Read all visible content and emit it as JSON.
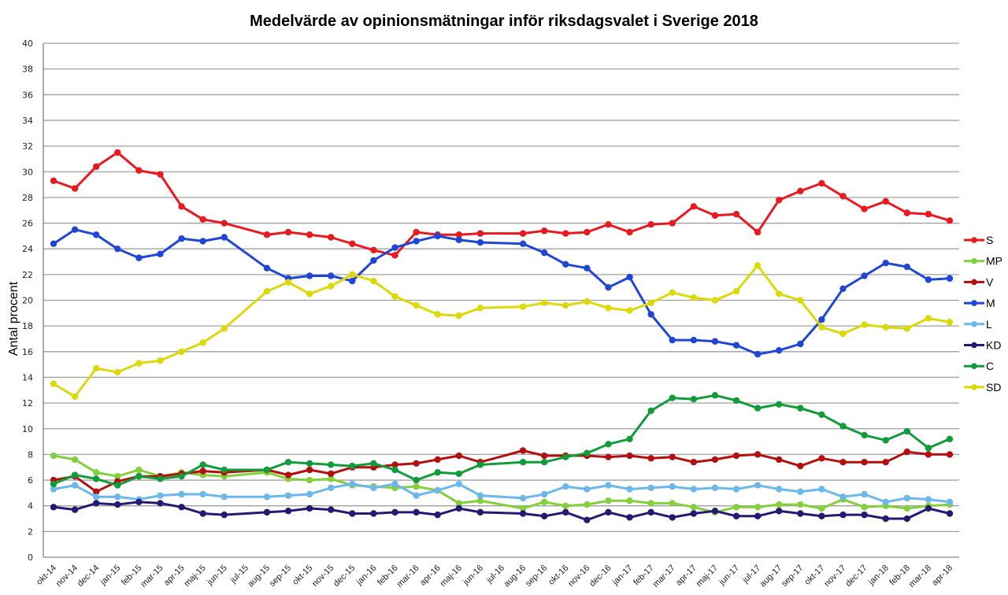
{
  "chart_data": {
    "type": "line",
    "title": "Medelvärde av opinionsmätningar inför riksdagsvalet i Sverige 2018",
    "xlabel": "",
    "ylabel": "Antal procent",
    "ylim": [
      0,
      40
    ],
    "yticks": [
      0,
      2,
      4,
      6,
      8,
      10,
      12,
      14,
      16,
      18,
      20,
      22,
      24,
      26,
      28,
      30,
      32,
      34,
      36,
      38,
      40
    ],
    "grid": true,
    "legend_position": "right",
    "categories": [
      "okt-14",
      "nov-14",
      "dec-14",
      "jan-15",
      "feb-15",
      "mar-15",
      "apr-15",
      "maj-15",
      "jun-15",
      "jul-15",
      "aug-15",
      "sep-15",
      "okt-15",
      "nov-15",
      "dec-15",
      "jan-16",
      "feb-16",
      "mar-16",
      "apr-16",
      "maj-16",
      "jun-16",
      "jul-16",
      "aug-16",
      "sep-16",
      "okt-16",
      "nov-16",
      "dec-16",
      "jan-17",
      "feb-17",
      "mar-17",
      "apr-17",
      "maj-17",
      "jun-17",
      "jul-17",
      "aug-17",
      "sep-17",
      "okt-17",
      "nov-17",
      "dec-17",
      "jan-18",
      "feb-18",
      "mar-18",
      "apr-18"
    ],
    "series": [
      {
        "name": "S",
        "color": "#e8191f",
        "values": [
          29.3,
          28.7,
          30.4,
          31.5,
          30.1,
          29.8,
          27.3,
          26.3,
          26.0,
          null,
          25.1,
          25.3,
          25.1,
          24.9,
          24.4,
          23.9,
          23.5,
          25.3,
          25.1,
          25.1,
          25.2,
          null,
          25.2,
          25.4,
          25.2,
          25.3,
          25.9,
          25.3,
          25.9,
          26.0,
          27.3,
          26.6,
          26.7,
          25.3,
          27.8,
          28.5,
          29.1,
          28.1,
          27.1,
          27.7,
          26.8,
          26.7,
          26.2
        ]
      },
      {
        "name": "MP",
        "color": "#83d03c",
        "values": [
          7.9,
          7.6,
          6.6,
          6.3,
          6.8,
          6.3,
          6.6,
          6.4,
          6.3,
          null,
          6.6,
          6.1,
          6.0,
          6.1,
          5.6,
          5.5,
          5.4,
          5.5,
          5.2,
          4.2,
          4.4,
          null,
          3.8,
          4.3,
          4.0,
          4.1,
          4.4,
          4.4,
          4.2,
          4.2,
          3.9,
          3.5,
          3.9,
          3.9,
          4.1,
          4.1,
          3.8,
          4.5,
          3.9,
          4.0,
          3.8,
          4.0,
          4.1
        ]
      },
      {
        "name": "V",
        "color": "#b40f0f",
        "values": [
          6.0,
          6.3,
          5.1,
          5.9,
          6.3,
          6.3,
          6.5,
          6.7,
          6.6,
          null,
          6.8,
          6.4,
          6.8,
          6.5,
          7.0,
          7.0,
          7.2,
          7.3,
          7.6,
          7.9,
          7.4,
          null,
          8.3,
          7.9,
          7.9,
          7.9,
          7.8,
          7.9,
          7.7,
          7.8,
          7.4,
          7.6,
          7.9,
          8.0,
          7.6,
          7.1,
          7.7,
          7.4,
          7.4,
          7.4,
          8.2,
          8.0,
          8.0
        ]
      },
      {
        "name": "M",
        "color": "#1f46d6",
        "values": [
          24.4,
          25.5,
          25.1,
          24.0,
          23.3,
          23.6,
          24.8,
          24.6,
          24.9,
          null,
          22.5,
          21.7,
          21.9,
          21.9,
          21.5,
          23.1,
          24.1,
          24.6,
          25.0,
          24.7,
          24.5,
          null,
          24.4,
          23.7,
          22.8,
          22.5,
          21.0,
          21.8,
          18.9,
          16.9,
          16.9,
          16.8,
          16.5,
          15.8,
          16.1,
          16.6,
          18.5,
          20.9,
          21.9,
          22.9,
          22.6,
          21.6,
          21.7
        ]
      },
      {
        "name": "L",
        "color": "#6cb8ec",
        "values": [
          5.3,
          5.6,
          4.7,
          4.7,
          4.5,
          4.8,
          4.9,
          4.9,
          4.7,
          null,
          4.7,
          4.8,
          4.9,
          5.4,
          5.7,
          5.4,
          5.7,
          4.8,
          5.2,
          5.7,
          4.8,
          null,
          4.6,
          4.9,
          5.5,
          5.3,
          5.6,
          5.3,
          5.4,
          5.5,
          5.3,
          5.4,
          5.3,
          5.6,
          5.3,
          5.1,
          5.3,
          4.7,
          4.9,
          4.3,
          4.6,
          4.5,
          4.3
        ]
      },
      {
        "name": "KD",
        "color": "#221a73",
        "values": [
          3.9,
          3.7,
          4.2,
          4.1,
          4.3,
          4.2,
          3.9,
          3.4,
          3.3,
          null,
          3.5,
          3.6,
          3.8,
          3.7,
          3.4,
          3.4,
          3.5,
          3.5,
          3.3,
          3.8,
          3.5,
          null,
          3.4,
          3.2,
          3.5,
          2.9,
          3.5,
          3.1,
          3.5,
          3.1,
          3.4,
          3.6,
          3.2,
          3.2,
          3.6,
          3.4,
          3.2,
          3.3,
          3.3,
          3.0,
          3.0,
          3.8,
          3.4
        ]
      },
      {
        "name": "C",
        "color": "#119c3a",
        "values": [
          5.7,
          6.4,
          6.1,
          5.6,
          6.3,
          6.1,
          6.3,
          7.2,
          6.8,
          null,
          6.8,
          7.4,
          7.3,
          7.2,
          7.1,
          7.3,
          6.8,
          6.0,
          6.6,
          6.5,
          7.2,
          null,
          7.4,
          7.4,
          7.8,
          8.1,
          8.8,
          9.2,
          11.4,
          12.4,
          12.3,
          12.6,
          12.2,
          11.6,
          11.9,
          11.6,
          11.1,
          10.2,
          9.5,
          9.1,
          9.8,
          8.5,
          9.2
        ]
      },
      {
        "name": "SD",
        "color": "#dcd90a",
        "values": [
          13.5,
          12.5,
          14.7,
          14.4,
          15.1,
          15.3,
          16.0,
          16.7,
          17.8,
          null,
          20.7,
          21.4,
          20.5,
          21.1,
          22.0,
          21.5,
          20.3,
          19.6,
          18.9,
          18.8,
          19.4,
          null,
          19.5,
          19.8,
          19.6,
          19.9,
          19.4,
          19.2,
          19.8,
          20.6,
          20.2,
          20.0,
          20.7,
          22.7,
          20.5,
          20.0,
          17.9,
          17.4,
          18.1,
          17.9,
          17.8,
          18.6,
          18.3
        ]
      }
    ]
  }
}
